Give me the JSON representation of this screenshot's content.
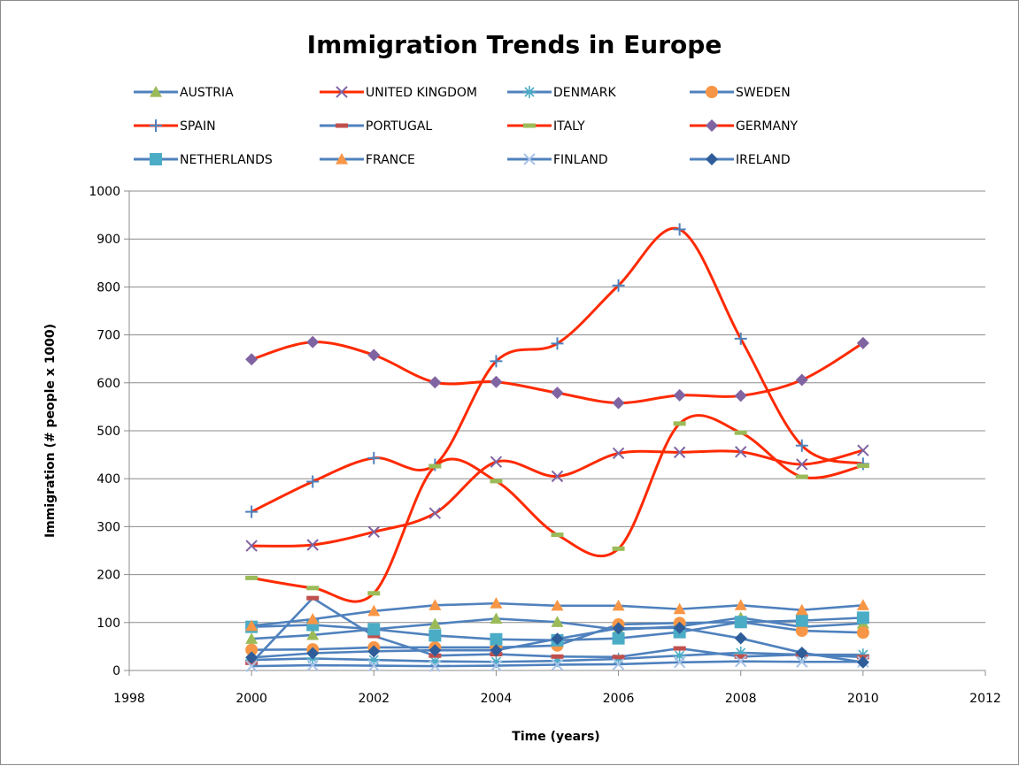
{
  "chart_data": {
    "type": "line",
    "title": "Immigration Trends in Europe",
    "xlabel": "Time (years)",
    "ylabel": "Immigration (# people x 1000)",
    "xlim": [
      1998,
      2012
    ],
    "ylim": [
      0,
      1000
    ],
    "xticks": [
      1998,
      2000,
      2002,
      2004,
      2006,
      2008,
      2010,
      2012
    ],
    "yticks": [
      0,
      100,
      200,
      300,
      400,
      500,
      600,
      700,
      800,
      900,
      1000
    ],
    "grid": "horizontal",
    "legend_position": "top",
    "x": [
      2000,
      2001,
      2002,
      2003,
      2004,
      2005,
      2006,
      2007,
      2008,
      2009,
      2010
    ],
    "series": [
      {
        "name": "AUSTRIA",
        "color": "#4f81bd",
        "marker": "triangle",
        "marker_color": "#9bbb59",
        "smooth": false,
        "values": [
          66,
          74,
          86,
          97,
          108,
          101,
          85,
          92,
          110,
          91,
          98
        ]
      },
      {
        "name": "UNITED KINGDOM",
        "color": "#ff2a00",
        "marker": "x",
        "marker_color": "#8064a2",
        "smooth": true,
        "values": [
          260,
          262,
          289,
          328,
          435,
          405,
          453,
          455,
          456,
          430,
          459
        ]
      },
      {
        "name": "DENMARK",
        "color": "#4f81bd",
        "marker": "star",
        "marker_color": "#4bacc6",
        "smooth": false,
        "values": [
          22,
          25,
          22,
          19,
          18,
          20,
          24,
          31,
          37,
          33,
          33
        ]
      },
      {
        "name": "SWEDEN",
        "color": "#4f81bd",
        "marker": "circle",
        "marker_color": "#f79646",
        "smooth": false,
        "values": [
          43,
          44,
          48,
          48,
          48,
          52,
          96,
          99,
          101,
          83,
          79
        ]
      },
      {
        "name": "SPAIN",
        "color": "#ff2a00",
        "marker": "plus",
        "marker_color": "#4f81bd",
        "smooth": true,
        "values": [
          331,
          394,
          443,
          429,
          645,
          682,
          803,
          920,
          692,
          469,
          431
        ]
      },
      {
        "name": "PORTUGAL",
        "color": "#4f81bd",
        "marker": "dash",
        "marker_color": "#c0504d",
        "smooth": false,
        "values": [
          16,
          151,
          72,
          31,
          34,
          29,
          28,
          46,
          29,
          33,
          28
        ]
      },
      {
        "name": "ITALY",
        "color": "#ff2a00",
        "marker": "dash",
        "marker_color": "#9bbb59",
        "smooth": true,
        "values": [
          193,
          172,
          161,
          426,
          395,
          283,
          254,
          515,
          496,
          404,
          427
        ]
      },
      {
        "name": "GERMANY",
        "color": "#ff2a00",
        "marker": "diamond",
        "marker_color": "#8064a2",
        "smooth": true,
        "values": [
          649,
          685,
          658,
          601,
          602,
          579,
          558,
          574,
          573,
          606,
          683
        ]
      },
      {
        "name": "NETHERLANDS",
        "color": "#4f81bd",
        "marker": "square",
        "marker_color": "#4bacc6",
        "smooth": false,
        "values": [
          91,
          95,
          86,
          73,
          65,
          63,
          67,
          80,
          101,
          104,
          110
        ]
      },
      {
        "name": "FRANCE",
        "color": "#4f81bd",
        "marker": "triangle",
        "marker_color": "#f79646",
        "smooth": false,
        "values": [
          93,
          107,
          124,
          136,
          140,
          135,
          135,
          128,
          136,
          126,
          136
        ]
      },
      {
        "name": "FINLAND",
        "color": "#4f81bd",
        "marker": "x",
        "marker_color": "#a8c3e8",
        "smooth": false,
        "values": [
          9,
          11,
          10,
          9,
          10,
          12,
          13,
          17,
          19,
          18,
          18
        ]
      },
      {
        "name": "IRELAND",
        "color": "#4f81bd",
        "marker": "diamond",
        "marker_color": "#2f5d9a",
        "smooth": false,
        "values": [
          27,
          36,
          40,
          42,
          42,
          66,
          88,
          89,
          67,
          37,
          17
        ]
      }
    ]
  }
}
